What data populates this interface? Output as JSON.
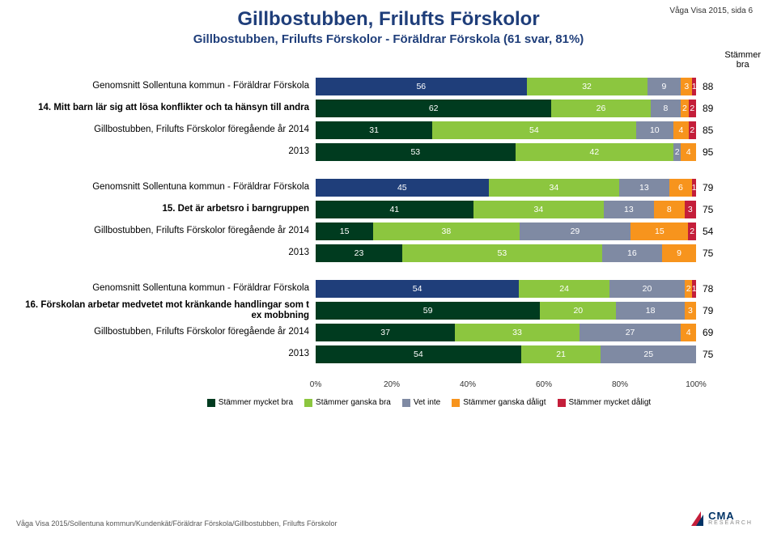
{
  "header_right": "Våga Visa 2015, sida 6",
  "title": "Gillbostubben, Frilufts Förskolor",
  "subtitle": "Gillbostubben, Frilufts Förskolor - Föräldrar Förskola (61 svar, 81%)",
  "title_color": "#1f3e7a",
  "top_legend_line1": "Stämmer",
  "top_legend_line2": "bra",
  "colors": {
    "s1": "#003b1f",
    "s2": "#8cc63f",
    "s3": "#7f8aa3",
    "s4": "#f7941d",
    "s5": "#c41e3a",
    "alt_s1": "#1f3e7a"
  },
  "groups": [
    {
      "rows": [
        {
          "label": "Genomsnitt Sollentuna kommun - Föräldrar Förskola",
          "bold": false,
          "alt_first": true,
          "segs": [
            56,
            32,
            9,
            3,
            1
          ],
          "total": 88
        },
        {
          "label": "14. Mitt barn lär sig att lösa konflikter och ta hänsyn till andra",
          "bold": true,
          "segs": [
            62,
            26,
            8,
            2,
            2
          ],
          "total": 89
        },
        {
          "label": "Gillbostubben, Frilufts Förskolor föregående år 2014",
          "bold": false,
          "segs": [
            31,
            54,
            10,
            4,
            2
          ],
          "total": 85
        },
        {
          "label": "2013",
          "bold": false,
          "segs": [
            53,
            42,
            2,
            4,
            0
          ],
          "total": 95
        }
      ]
    },
    {
      "rows": [
        {
          "label": "Genomsnitt Sollentuna kommun - Föräldrar Förskola",
          "bold": false,
          "alt_first": true,
          "segs": [
            45,
            34,
            13,
            6,
            1
          ],
          "total": 79
        },
        {
          "label": "15. Det är arbetsro i barngruppen",
          "bold": true,
          "segs": [
            41,
            34,
            13,
            8,
            3
          ],
          "total": 75
        },
        {
          "label": "Gillbostubben, Frilufts Förskolor föregående år 2014",
          "bold": false,
          "segs": [
            15,
            38,
            29,
            15,
            2
          ],
          "total": 54
        },
        {
          "label": "2013",
          "bold": false,
          "segs": [
            23,
            53,
            16,
            9,
            0
          ],
          "total": 75
        }
      ]
    },
    {
      "rows": [
        {
          "label": "Genomsnitt Sollentuna kommun - Föräldrar Förskola",
          "bold": false,
          "alt_first": true,
          "segs": [
            54,
            24,
            20,
            2,
            1
          ],
          "total": 78
        },
        {
          "label": "16. Förskolan arbetar medvetet mot kränkande handlingar som t ex mobbning",
          "bold": true,
          "segs": [
            59,
            20,
            18,
            3,
            0
          ],
          "total": 79
        },
        {
          "label": "Gillbostubben, Frilufts Förskolor föregående år 2014",
          "bold": false,
          "segs": [
            37,
            33,
            27,
            4,
            0
          ],
          "total": 69
        },
        {
          "label": "2013",
          "bold": false,
          "segs": [
            54,
            21,
            25,
            0,
            0
          ],
          "total": 75
        }
      ]
    }
  ],
  "axis": {
    "ticks": [
      "0%",
      "20%",
      "40%",
      "60%",
      "80%",
      "100%"
    ],
    "positions": [
      0,
      20,
      40,
      60,
      80,
      100
    ]
  },
  "legend": [
    {
      "label": "Stämmer mycket bra",
      "color": "#003b1f"
    },
    {
      "label": "Stämmer ganska bra",
      "color": "#8cc63f"
    },
    {
      "label": "Vet inte",
      "color": "#7f8aa3"
    },
    {
      "label": "Stämmer ganska dåligt",
      "color": "#f7941d"
    },
    {
      "label": "Stämmer mycket dåligt",
      "color": "#c41e3a"
    }
  ],
  "footer": "Våga Visa 2015/Sollentuna kommun/Kundenkät/Föräldrar Förskola/Gillbostubben, Frilufts Förskolor",
  "logo": {
    "top": "CMA",
    "bottom": "RESEARCH"
  }
}
